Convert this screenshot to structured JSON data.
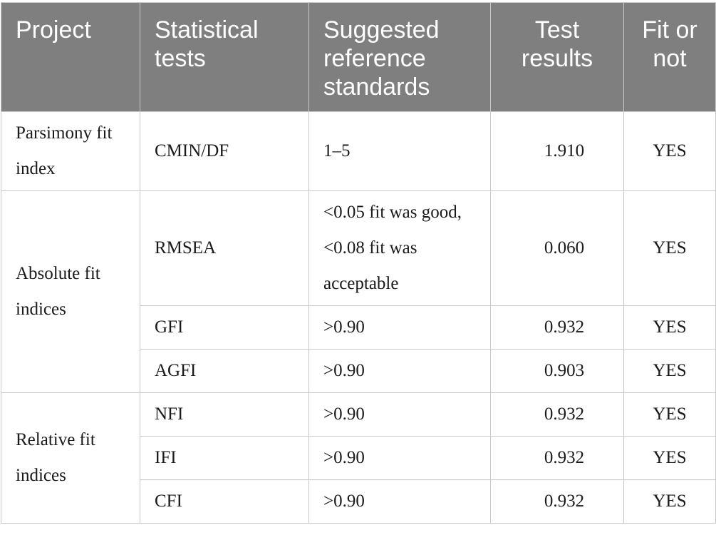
{
  "header": {
    "project": "Project",
    "statistical_tests": "Statistical tests",
    "suggested_reference": "Suggested reference standards",
    "test_results": "Test results",
    "fit_or_not": "Fit or not"
  },
  "rows": [
    {
      "group": "Parsimony fit index",
      "test": "CMIN/DF",
      "standard": "1–5",
      "result": "1.910",
      "fit": "YES"
    },
    {
      "group": "Absolute fit indices",
      "test": "RMSEA",
      "standard": "<0.05 fit was good, <0.08 fit was acceptable",
      "result": "0.060",
      "fit": "YES"
    },
    {
      "test": "GFI",
      "standard": ">0.90",
      "result": "0.932",
      "fit": "YES"
    },
    {
      "test": "AGFI",
      "standard": ">0.90",
      "result": "0.903",
      "fit": "YES"
    },
    {
      "group": "Relative fit indices",
      "test": "NFI",
      "standard": ">0.90",
      "result": "0.932",
      "fit": "YES"
    },
    {
      "test": "IFI",
      "standard": ">0.90",
      "result": "0.932",
      "fit": "YES"
    },
    {
      "test": "CFI",
      "standard": ">0.90",
      "result": "0.932",
      "fit": "YES"
    }
  ]
}
